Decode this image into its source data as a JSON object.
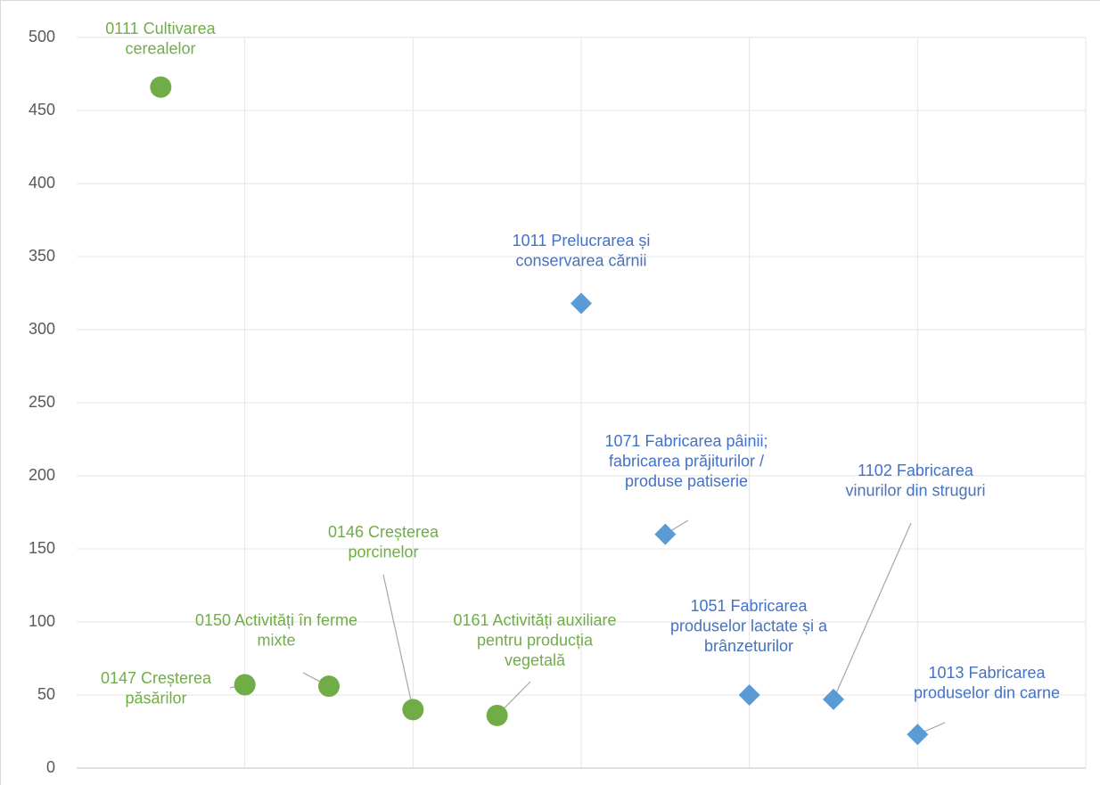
{
  "chart_data": {
    "type": "scatter",
    "xlim": [
      0,
      6
    ],
    "xticks": [
      0,
      1,
      2,
      3,
      4,
      5,
      6
    ],
    "ylim": [
      0,
      500
    ],
    "yticks": [
      0,
      50,
      100,
      150,
      200,
      250,
      300,
      350,
      400,
      450,
      500
    ],
    "grid": true,
    "series": [
      {
        "color": "#70ad47",
        "label_color": "#70ad47",
        "marker": "circle",
        "x": [
          0.5,
          1,
          1.5,
          2,
          2.5
        ],
        "values": [
          466,
          57,
          56,
          40,
          36
        ],
        "labels": [
          [
            "0111 Cultivarea",
            "cerealelor"
          ],
          [
            "0147 Creșterea",
            "păsărilor"
          ],
          [
            "0150 Activități în ferme",
            "mixte"
          ],
          [
            "0146 Creșterea",
            "porcinelor"
          ],
          [
            "0161 Activități auxiliare",
            "pentru producția",
            "vegetală"
          ]
        ]
      },
      {
        "color": "#5b9bd5",
        "label_color": "#4472c4",
        "marker": "diamond",
        "x": [
          3,
          3.5,
          4,
          4.5,
          5
        ],
        "values": [
          318,
          160,
          50,
          47,
          23
        ],
        "labels": [
          [
            "1011 Prelucrarea și",
            "conservarea cărnii"
          ],
          [
            "1071 Fabricarea pâinii;",
            "fabricarea prăjiturilor /",
            "produse patiserie"
          ],
          [
            "1051 Fabricarea",
            "produselor lactate și a",
            "brânzeturilor"
          ],
          [
            "1102 Fabricarea",
            "vinurilor din struguri"
          ],
          [
            "1013 Fabricarea",
            "produselor din carne"
          ]
        ]
      }
    ]
  }
}
